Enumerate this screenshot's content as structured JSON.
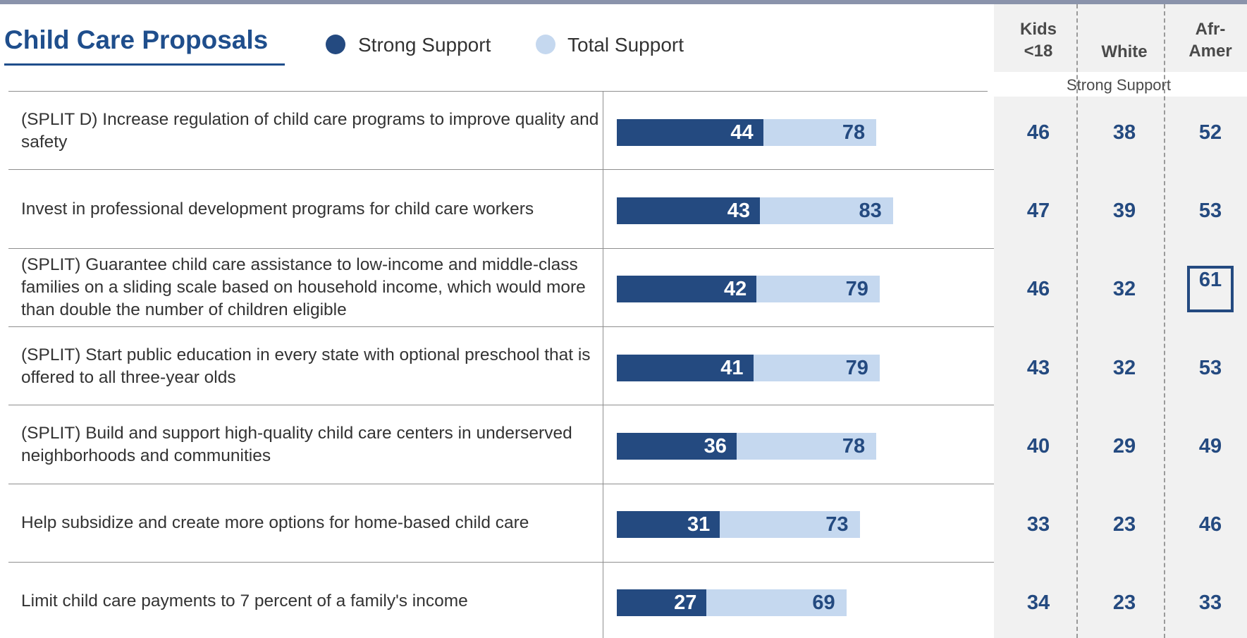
{
  "title": "Child Care Proposals",
  "legend": {
    "strong": "Strong Support",
    "total": "Total Support"
  },
  "colors": {
    "strong": "#244a80",
    "total": "#c5d8ef",
    "title": "#1f4e8c"
  },
  "demographics": {
    "columns": [
      "Kids\n<18",
      "White",
      "Afr-\nAmer"
    ],
    "subtitle": "Strong Support"
  },
  "chart_data": {
    "type": "bar",
    "orientation": "horizontal",
    "stacked_overlay": true,
    "title": "Child Care Proposals",
    "categories": [
      "(SPLIT D) Increase regulation of child care programs to improve quality and safety",
      "Invest in professional development programs for child care workers",
      "(SPLIT) Guarantee child care assistance to low-income and middle-class families on a sliding scale based on household income, which would more than double the number of children eligible",
      "(SPLIT) Start public education in every state with optional preschool that is offered to all three-year olds",
      "(SPLIT) Build and support high-quality child care centers in underserved neighborhoods and communities",
      "Help subsidize and create more options for home-based child care",
      "Limit child care payments to 7 percent of a family's income"
    ],
    "series": [
      {
        "name": "Strong Support",
        "values": [
          44,
          43,
          42,
          41,
          36,
          31,
          27
        ]
      },
      {
        "name": "Total Support",
        "values": [
          78,
          83,
          79,
          79,
          78,
          73,
          69
        ]
      }
    ],
    "xlim": [
      0,
      100
    ],
    "legend_position": "top",
    "grid": false,
    "demographic_table": {
      "header": "Strong Support",
      "columns": [
        "Kids <18",
        "White",
        "Afr-Amer"
      ],
      "rows": [
        [
          46,
          38,
          52
        ],
        [
          47,
          39,
          53
        ],
        [
          46,
          32,
          61
        ],
        [
          43,
          32,
          53
        ],
        [
          40,
          29,
          49
        ],
        [
          33,
          23,
          46
        ],
        [
          34,
          23,
          33
        ]
      ],
      "highlighted": [
        {
          "row": 2,
          "column": "Afr-Amer"
        }
      ]
    }
  }
}
